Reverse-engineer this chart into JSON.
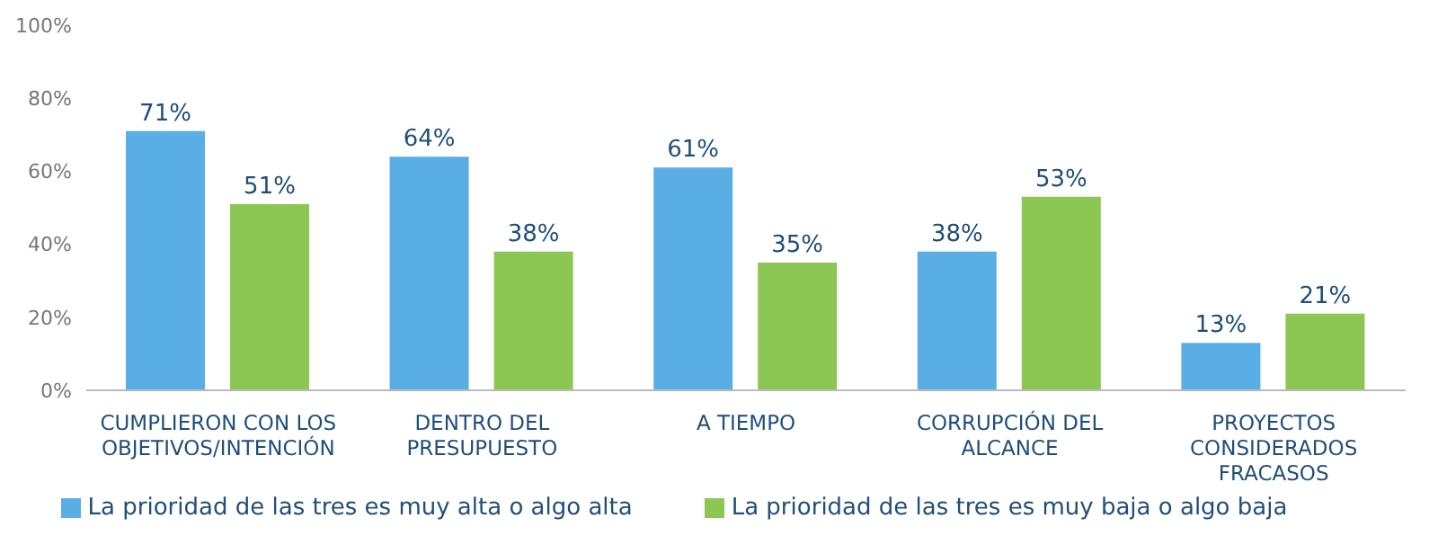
{
  "chart_data": {
    "type": "bar",
    "categories": [
      "CUMPLIERON CON LOS OBJETIVOS/INTENCIÓN",
      "DENTRO DEL PRESUPUESTO",
      "A TIEMPO",
      "CORRUPCIÓN DEL ALCANCE",
      "PROYECTOS CONSIDERADOS FRACASOS"
    ],
    "series": [
      {
        "name": "La prioridad de las tres es muy alta o algo alta",
        "color": "#5aaee6",
        "values": [
          71,
          64,
          61,
          38,
          13
        ],
        "value_labels": [
          "71%",
          "64%",
          "61%",
          "38%",
          "13%"
        ]
      },
      {
        "name": "La prioridad de las tres es muy baja o algo baja",
        "color": "#8cc653",
        "values": [
          51,
          38,
          35,
          53,
          21
        ],
        "value_labels": [
          "51%",
          "38%",
          "35%",
          "53%",
          "21%"
        ]
      }
    ],
    "ylim": [
      0,
      100
    ],
    "yticks": [
      {
        "value": 0,
        "label": "0%"
      },
      {
        "value": 20,
        "label": "20%"
      },
      {
        "value": 40,
        "label": "40%"
      },
      {
        "value": 60,
        "label": "60%"
      },
      {
        "value": 80,
        "label": "80%"
      },
      {
        "value": 100,
        "label": "100%"
      }
    ],
    "grid": false,
    "legend": "bottom"
  }
}
